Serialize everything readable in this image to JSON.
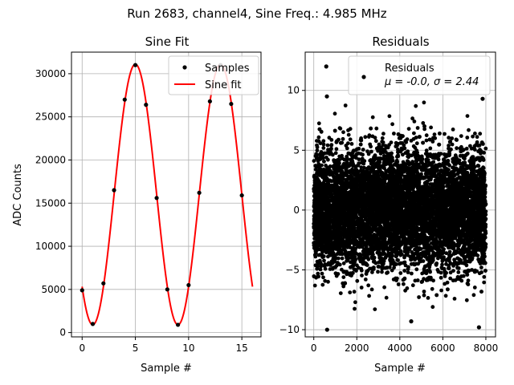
{
  "figure": {
    "suptitle": "Run 2683, channel4, Sine Freq.: 4.985 MHz"
  },
  "chart_data": [
    {
      "type": "scatter",
      "title": "Sine Fit",
      "xlabel": "Sample #",
      "ylabel": "ADC Counts",
      "xlim": [
        -1.0,
        16.8
      ],
      "ylim": [
        -500,
        32500
      ],
      "grid": true,
      "xticks": [
        0,
        5,
        10,
        15
      ],
      "yticks": [
        0,
        5000,
        10000,
        15000,
        20000,
        25000,
        30000
      ],
      "legend_position": "top-right",
      "series": [
        {
          "name": "Samples",
          "kind": "points",
          "color": "#000000",
          "x": [
            0,
            1,
            2,
            3,
            4,
            5,
            6,
            7,
            8,
            9,
            10,
            11,
            12,
            13,
            14,
            15
          ],
          "y": [
            4900,
            1000,
            5700,
            16500,
            27000,
            31000,
            26400,
            15600,
            5000,
            900,
            5500,
            16200,
            26800,
            31000,
            26500,
            15900
          ]
        },
        {
          "name": "Sine fit",
          "kind": "curve",
          "color": "#ff0000",
          "model": {
            "offset": 16000,
            "amplitude": 15100,
            "period": 8.0,
            "phase_shift": 3.0
          },
          "x_range": [
            0,
            16
          ]
        }
      ]
    },
    {
      "type": "scatter",
      "title": "Residuals",
      "xlabel": "Sample #",
      "ylabel": "",
      "xlim": [
        -400,
        8450
      ],
      "ylim": [
        -10.6,
        13.2
      ],
      "grid": true,
      "xticks": [
        0,
        2000,
        4000,
        6000,
        8000
      ],
      "yticks": [
        -10,
        -5,
        0,
        5,
        10
      ],
      "legend_position": "top-right",
      "n_points": 8000,
      "series": [
        {
          "name": "Residuals",
          "stats_label": "μ = -0.0, σ = 2.44",
          "mean": 0.0,
          "std": 2.44,
          "color": "#000000"
        }
      ],
      "notable_points": [
        {
          "x": 580,
          "y": 12.0
        },
        {
          "x": 620,
          "y": -10.0
        },
        {
          "x": 7680,
          "y": -9.8
        },
        {
          "x": 4530,
          "y": -9.3
        },
        {
          "x": 610,
          "y": 9.5
        },
        {
          "x": 7850,
          "y": 9.3
        }
      ]
    }
  ]
}
